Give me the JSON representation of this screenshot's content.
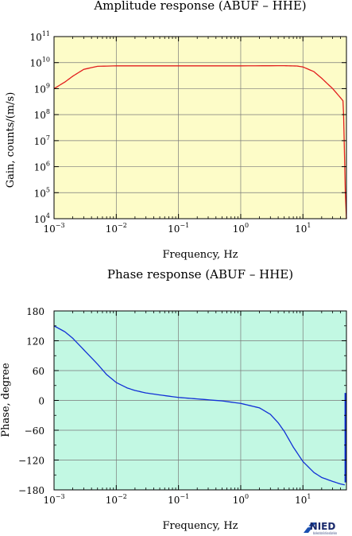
{
  "chart_data": [
    {
      "type": "line",
      "title": "Amplitude response (ABUF – HHE)",
      "xlabel": "Frequency, Hz",
      "ylabel": "Gain, counts/(m/s)",
      "x_scale": "log",
      "y_scale": "log",
      "xlim": [
        0.001,
        50
      ],
      "ylim": [
        10000,
        100000000000
      ],
      "x_ticks": [
        {
          "base": "10",
          "exp": "−3",
          "value": 0.001
        },
        {
          "base": "10",
          "exp": "−2",
          "value": 0.01
        },
        {
          "base": "10",
          "exp": "−1",
          "value": 0.1
        },
        {
          "base": "10",
          "exp": "0",
          "value": 1
        },
        {
          "base": "10",
          "exp": "1",
          "value": 10
        }
      ],
      "y_ticks": [
        {
          "base": "10",
          "exp": "4",
          "value": 10000
        },
        {
          "base": "10",
          "exp": "5",
          "value": 100000
        },
        {
          "base": "10",
          "exp": "6",
          "value": 1000000
        },
        {
          "base": "10",
          "exp": "7",
          "value": 10000000
        },
        {
          "base": "10",
          "exp": "8",
          "value": 100000000
        },
        {
          "base": "10",
          "exp": "9",
          "value": 1000000000
        },
        {
          "base": "10",
          "exp": "10",
          "value": 10000000000
        },
        {
          "base": "10",
          "exp": "11",
          "value": 100000000000
        }
      ],
      "grid": true,
      "background_color": "#fdfcc8",
      "line_color": "#e21d1d",
      "series": [
        {
          "x": [
            0.001,
            0.0015,
            0.002,
            0.003,
            0.005,
            0.01,
            0.1,
            1,
            5,
            8,
            10,
            15,
            20,
            30,
            40,
            44,
            45,
            46,
            47,
            48,
            50
          ],
          "y": [
            1000000000,
            1800000000,
            3000000000,
            5500000000,
            7200000000,
            7500000000,
            7500000000,
            7500000000,
            7600000000,
            7400000000,
            6800000000,
            4500000000,
            2500000000,
            1000000000,
            450000000,
            340000000,
            100000000,
            10000000,
            1000000,
            100000,
            10000
          ]
        }
      ]
    },
    {
      "type": "line",
      "title": "Phase response (ABUF – HHE)",
      "xlabel": "Frequency, Hz",
      "ylabel": "Phase, degree",
      "x_scale": "log",
      "xlim": [
        0.001,
        50
      ],
      "ylim": [
        -180,
        180
      ],
      "x_ticks": [
        {
          "base": "10",
          "exp": "−3",
          "value": 0.001
        },
        {
          "base": "10",
          "exp": "−2",
          "value": 0.01
        },
        {
          "base": "10",
          "exp": "−1",
          "value": 0.1
        },
        {
          "base": "10",
          "exp": "0",
          "value": 1
        },
        {
          "base": "10",
          "exp": "1",
          "value": 10
        }
      ],
      "y_ticks": [
        180,
        120,
        60,
        0,
        -60,
        -120,
        -180
      ],
      "grid": true,
      "background_color": "#c2f8e3",
      "line_color": "#1231d6",
      "series": [
        {
          "x": [
            0.001,
            0.0015,
            0.002,
            0.003,
            0.005,
            0.007,
            0.01,
            0.015,
            0.02,
            0.03,
            0.05,
            0.1,
            0.2,
            0.5,
            1,
            2,
            3,
            4,
            5,
            7,
            10,
            15,
            20,
            30,
            40,
            47
          ],
          "y": [
            150,
            138,
            125,
            102,
            73,
            52,
            36,
            25,
            20,
            15,
            11,
            6,
            3,
            -1,
            -6,
            -15,
            -28,
            -45,
            -62,
            -94,
            -123,
            -145,
            -155,
            -163,
            -168,
            -170
          ]
        }
      ],
      "end_spike": {
        "x": 48,
        "y": [
          -165,
          15
        ]
      }
    }
  ],
  "logo": {
    "text": "NIED",
    "subtext": "National Research Institute for Earth Science and Disaster Resilience"
  }
}
